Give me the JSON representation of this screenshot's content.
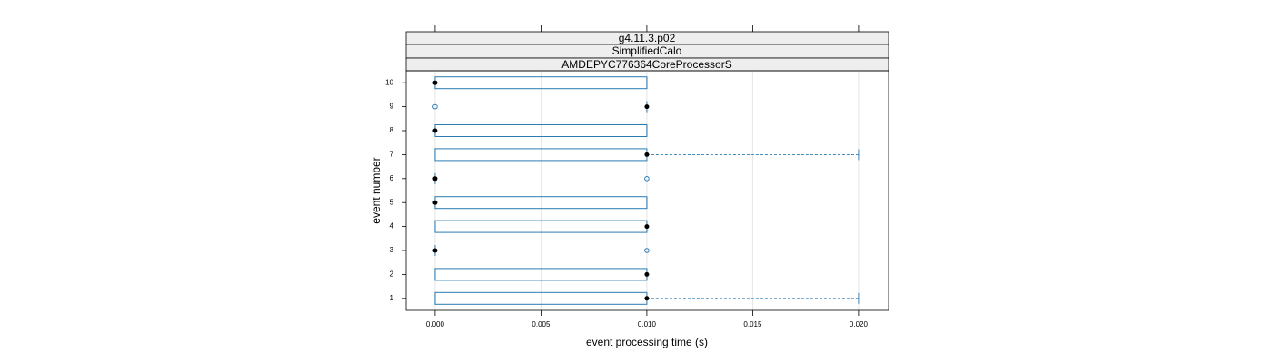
{
  "chart_data": {
    "type": "boxplot",
    "orientation": "horizontal",
    "strips": [
      "g4.11.3.p02",
      "SimplifiedCalo",
      "AMDEPYC776364CoreProcessorS"
    ],
    "xlabel": "event processing time (s)",
    "ylabel": "event number",
    "categories": [
      "1",
      "2",
      "3",
      "4",
      "5",
      "6",
      "7",
      "8",
      "9",
      "10"
    ],
    "min": [
      0,
      0,
      0,
      0,
      0,
      0,
      0,
      0,
      0.01,
      0
    ],
    "q1": [
      0,
      0,
      0,
      0,
      0,
      0,
      0,
      0,
      0.01,
      0
    ],
    "median": [
      0.01,
      0.01,
      0,
      0.01,
      0,
      0,
      0.01,
      0,
      0.01,
      0
    ],
    "q3": [
      0.01,
      0.01,
      0,
      0.01,
      0.01,
      0,
      0.01,
      0.01,
      0.01,
      0.01
    ],
    "max": [
      0.02,
      0.01,
      0,
      0.01,
      0.01,
      0,
      0.02,
      0.01,
      0.01,
      0.01
    ],
    "outliers": [
      [],
      [],
      [
        0.01
      ],
      [],
      [],
      [
        0.01
      ],
      [],
      [],
      [
        0
      ],
      []
    ],
    "color": "#2b7bb3",
    "median_color": "#000000",
    "xlim": [
      -0.00137,
      0.02142
    ],
    "xticks": [
      {
        "value": 0,
        "label": "0.000"
      },
      {
        "value": 0.005,
        "label": "0.005"
      },
      {
        "value": 0.01,
        "label": "0.010"
      },
      {
        "value": 0.015,
        "label": "0.015"
      },
      {
        "value": 0.02,
        "label": "0.020"
      }
    ],
    "grid": true
  }
}
